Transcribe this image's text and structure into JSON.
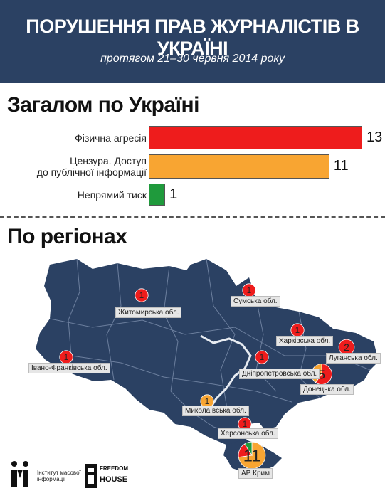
{
  "header": {
    "title": "ПОРУШЕННЯ ПРАВ ЖУРНАЛІСТІВ В УКРАЇНІ",
    "subtitle": "протягом 21–30 червня 2014 року"
  },
  "colors": {
    "header_bg": "#2b4163",
    "map_fill": "#2b4163",
    "agression": "#ee1c1c",
    "censorship": "#f8a532",
    "pressure": "#1f9a3c"
  },
  "chart_data": {
    "type": "bar",
    "title": "Загалом по Україні",
    "categories": [
      "Фізична агресія",
      "Цензура. Доступ до публічної інформації",
      "Непрямий тиск"
    ],
    "label_lines": [
      [
        "Фізична агресія"
      ],
      [
        "Цензура. Доступ",
        "до публічної інформації"
      ],
      [
        "Непрямий тиск"
      ]
    ],
    "values": [
      13,
      11,
      1
    ],
    "xlim": [
      0,
      13
    ]
  },
  "regions_title": "По регіонах",
  "regions": [
    {
      "name": "Житомирська обл.",
      "count": 1
    },
    {
      "name": "Сумська обл.",
      "count": 1
    },
    {
      "name": "Харківська обл.",
      "count": 1
    },
    {
      "name": "Луганська обл.",
      "count": 2
    },
    {
      "name": "Івано-Франківська обл.",
      "count": 1
    },
    {
      "name": "Дніпропетровська обл.",
      "count": 1
    },
    {
      "name": "Донецька обл.",
      "count": 5
    },
    {
      "name": "Миколаївська обл.",
      "count": 1
    },
    {
      "name": "Херсонська обл.",
      "count": 1
    },
    {
      "name": "АР Крим",
      "count": 11
    }
  ],
  "footer": {
    "imi_text": [
      "Інститут масової",
      "інформації"
    ],
    "fh_logo_text": [
      "FREEDOM",
      "HOUSE"
    ]
  }
}
